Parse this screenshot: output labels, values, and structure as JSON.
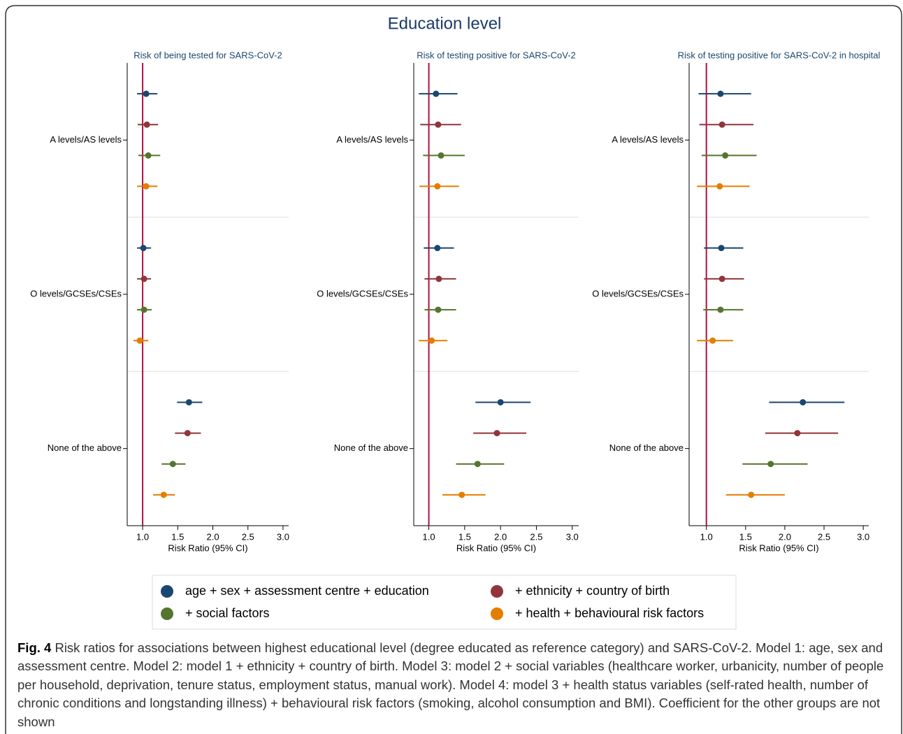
{
  "title": "Education level",
  "chart_data": [
    {
      "type": "forest",
      "title": "Risk of being tested for SARS-CoV-2",
      "xlabel": "Risk Ratio (95% CI)",
      "categories": [
        "A levels/AS levels",
        "O levels/GCSEs/CSEs",
        "None of the above"
      ],
      "xlim": [
        0.78,
        3.08
      ],
      "xticks": [
        {
          "value": 1,
          "label": "1.0"
        },
        1.5,
        {
          "value": 2,
          "label": "2.0"
        },
        2.5,
        {
          "value": 3,
          "label": "3.0"
        }
      ],
      "reference_line": 1,
      "reference_color": "#b0103f",
      "series": [
        {
          "name": "age + sex + assessment centre + education",
          "color": "#1a476f",
          "values": [
            1.05,
            1.01,
            1.66
          ],
          "lower": [
            0.92,
            0.92,
            1.49
          ],
          "upper": [
            1.21,
            1.12,
            1.85
          ]
        },
        {
          "name": "+ ethnicity + country of birth",
          "color": "#90353b",
          "values": [
            1.06,
            1.02,
            1.64
          ],
          "lower": [
            0.93,
            0.92,
            1.46
          ],
          "upper": [
            1.22,
            1.12,
            1.83
          ]
        },
        {
          "name": "+ social factors",
          "color": "#55752f",
          "values": [
            1.08,
            1.02,
            1.43
          ],
          "lower": [
            0.94,
            0.92,
            1.27
          ],
          "upper": [
            1.25,
            1.13,
            1.61
          ]
        },
        {
          "name": "+ health + behavioural risk factors",
          "color": "#e37e00",
          "values": [
            1.05,
            0.96,
            1.3
          ],
          "lower": [
            0.92,
            0.87,
            1.15
          ],
          "upper": [
            1.21,
            1.08,
            1.46
          ]
        }
      ]
    },
    {
      "type": "forest",
      "title": "Risk of testing positive for SARS-CoV-2",
      "xlabel": "Risk Ratio (95% CI)",
      "categories": [
        "A levels/AS levels",
        "O levels/GCSEs/CSEs",
        "None of the above"
      ],
      "xlim": [
        0.79,
        3.09
      ],
      "xticks": [
        {
          "value": 1,
          "label": "1.0"
        },
        1.5,
        {
          "value": 2,
          "label": "2.0"
        },
        2.5,
        {
          "value": 3,
          "label": "3.0"
        }
      ],
      "reference_line": 1,
      "reference_color": "#b0103f",
      "series": [
        {
          "name": "age + sex + assessment centre + education",
          "color": "#1a476f",
          "values": [
            1.1,
            1.12,
            2.0
          ],
          "lower": [
            0.86,
            0.93,
            1.65
          ],
          "upper": [
            1.4,
            1.35,
            2.42
          ]
        },
        {
          "name": "+ ethnicity + country of birth",
          "color": "#90353b",
          "values": [
            1.13,
            1.14,
            1.95
          ],
          "lower": [
            0.88,
            0.94,
            1.62
          ],
          "upper": [
            1.45,
            1.38,
            2.36
          ]
        },
        {
          "name": "+ social factors",
          "color": "#55752f",
          "values": [
            1.17,
            1.13,
            1.68
          ],
          "lower": [
            0.92,
            0.94,
            1.38
          ],
          "upper": [
            1.5,
            1.38,
            2.05
          ]
        },
        {
          "name": "+ health + behavioural risk factors",
          "color": "#e37e00",
          "values": [
            1.12,
            1.04,
            1.46
          ],
          "lower": [
            0.87,
            0.86,
            1.19
          ],
          "upper": [
            1.42,
            1.26,
            1.79
          ]
        }
      ]
    },
    {
      "type": "forest",
      "title": "Risk of testing positive for SARS-CoV-2 in hospital",
      "xlabel": "Risk Ratio (95% CI)",
      "categories": [
        "A levels/AS levels",
        "O levels/GCSEs/CSEs",
        "None of the above"
      ],
      "xlim": [
        0.78,
        3.07
      ],
      "xticks": [
        {
          "value": 1,
          "label": "1.0"
        },
        1.5,
        {
          "value": 2,
          "label": "2.0"
        },
        2.5,
        {
          "value": 3,
          "label": "3.0"
        }
      ],
      "reference_line": 1,
      "reference_color": "#b0103f",
      "series": [
        {
          "name": "age + sex + assessment centre + education",
          "color": "#1a476f",
          "values": [
            1.18,
            1.19,
            2.23
          ],
          "lower": [
            0.9,
            0.97,
            1.8
          ],
          "upper": [
            1.57,
            1.47,
            2.76
          ]
        },
        {
          "name": "+ ethnicity + country of birth",
          "color": "#90353b",
          "values": [
            1.2,
            1.2,
            2.16
          ],
          "lower": [
            0.91,
            0.97,
            1.75
          ],
          "upper": [
            1.6,
            1.48,
            2.68
          ]
        },
        {
          "name": "+ social factors",
          "color": "#55752f",
          "values": [
            1.24,
            1.18,
            1.82
          ],
          "lower": [
            0.94,
            0.96,
            1.46
          ],
          "upper": [
            1.64,
            1.47,
            2.29
          ]
        },
        {
          "name": "+ health + behavioural risk factors",
          "color": "#e37e00",
          "values": [
            1.17,
            1.08,
            1.57
          ],
          "lower": [
            0.88,
            0.88,
            1.25
          ],
          "upper": [
            1.55,
            1.34,
            2.0
          ]
        }
      ]
    }
  ],
  "caption": {
    "label": "Fig. 4",
    "text": "Risk ratios for associations between highest educational level (degree educated as reference category) and SARS-CoV-2. Model 1: age, sex and assessment centre. Model 2: model 1 + ethnicity + country of birth. Model 3: model 2 + social variables (healthcare worker, urbanicity, number of people per household, deprivation, tenure status, employment status, manual work). Model 4: model 3 + health status variables (self-rated health, number of chronic conditions and longstanding illness) + behavioural risk factors (smoking, alcohol consumption and BMI). Coefficient for the other groups are not shown"
  }
}
